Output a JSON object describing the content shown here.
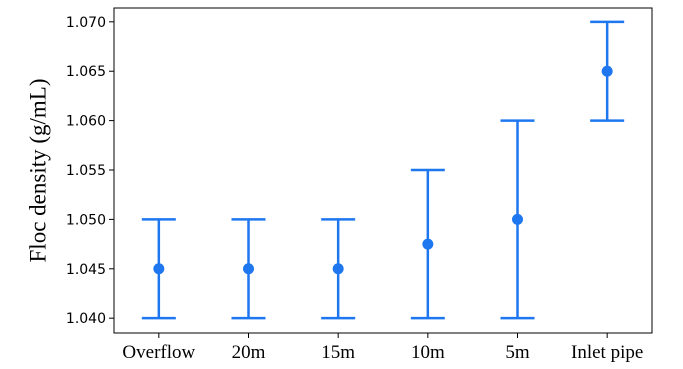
{
  "chart_data": {
    "type": "scatter",
    "subtype": "errorbar",
    "title": "",
    "xlabel": "",
    "ylabel": "Floc density (g/mL)",
    "categories": [
      "Overflow",
      "20m",
      "15m",
      "10m",
      "5m",
      "Inlet pipe"
    ],
    "values": [
      1.045,
      1.045,
      1.045,
      1.0475,
      1.05,
      1.065
    ],
    "lower": [
      1.04,
      1.04,
      1.04,
      1.04,
      1.04,
      1.06
    ],
    "upper": [
      1.05,
      1.05,
      1.05,
      1.055,
      1.06,
      1.07
    ],
    "ylim": [
      1.0385,
      1.0714
    ],
    "yticks": [
      1.04,
      1.045,
      1.05,
      1.055,
      1.06,
      1.065,
      1.07
    ],
    "ytick_labels": [
      "1.040",
      "1.045",
      "1.050",
      "1.055",
      "1.060",
      "1.065",
      "1.070"
    ],
    "grid": false,
    "color": "#1f77f0"
  }
}
